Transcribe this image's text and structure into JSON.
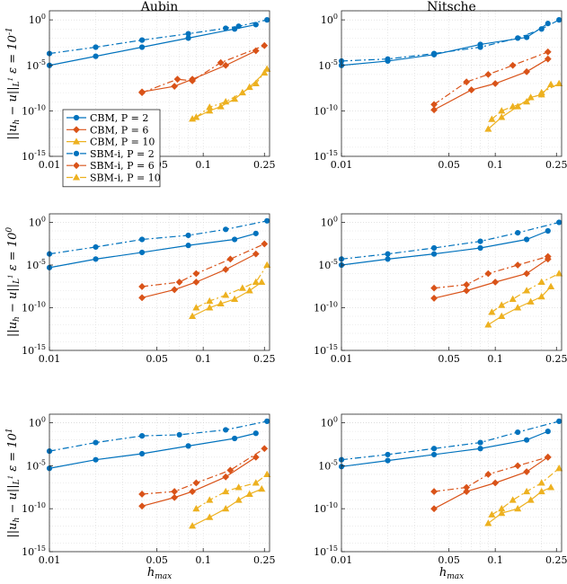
{
  "chart_data": {
    "type": "line",
    "scale": {
      "x": "log",
      "y": "log"
    },
    "xlim": [
      0.01,
      0.27
    ],
    "ylim": [
      1e-15,
      10.0
    ],
    "x_ticks": [
      0.01,
      0.05,
      0.1,
      0.25
    ],
    "x_tick_labels": [
      "0.01",
      "0.05",
      "0.1",
      "0.25"
    ],
    "y_ticks": [
      1e-15,
      1e-10,
      1e-05,
      1
    ],
    "y_tick_labels": [
      "10",
      "10",
      "10",
      "10"
    ],
    "y_tick_exps": [
      "-15",
      "-10",
      "-5",
      "0"
    ],
    "grid": true,
    "column_titles": [
      "Aubin",
      "Nitsche"
    ],
    "xlabel": "h",
    "xlabel_sub": "max",
    "row_labels": [
      {
        "text": "ε = 10",
        "exp": "-1",
        "norm": "||u − u||",
        "norm_sub_h": "h",
        "norm_sub_L": "L",
        "norm_sup": "1"
      },
      {
        "text": "ε = 10",
        "exp": "0",
        "norm": "||u − u||",
        "norm_sub_h": "h",
        "norm_sub_L": "L",
        "norm_sup": "1"
      },
      {
        "text": "ε = 10",
        "exp": "1",
        "norm": "||u − u||",
        "norm_sub_h": "h",
        "norm_sub_L": "L",
        "norm_sup": "1"
      }
    ],
    "legend": {
      "placement": "bottom-left of top-left panel",
      "entries": [
        {
          "label": "CBM, P = 2",
          "color": "#0072BD",
          "dash": "solid",
          "marker": "circle"
        },
        {
          "label": "CBM, P = 6",
          "color": "#D95319",
          "dash": "solid",
          "marker": "diamond"
        },
        {
          "label": "CBM, P = 10",
          "color": "#EDB120",
          "dash": "solid",
          "marker": "triangle"
        },
        {
          "label": "SBM-i, P = 2",
          "color": "#0072BD",
          "dash": "dashdot",
          "marker": "circle"
        },
        {
          "label": "SBM-i, P = 6",
          "color": "#D95319",
          "dash": "dashdot",
          "marker": "diamond"
        },
        {
          "label": "SBM-i, P = 10",
          "color": "#EDB120",
          "dash": "dashdot",
          "marker": "triangle"
        }
      ]
    },
    "panels": [
      {
        "row": 0,
        "col": 0,
        "series": [
          {
            "name": "CBM, P = 2",
            "x": [
              0.01,
              0.02,
              0.04,
              0.08,
              0.16,
              0.22
            ],
            "y": [
              1e-05,
              0.0001,
              0.001,
              0.01,
              0.1,
              0.3
            ]
          },
          {
            "name": "SBM-i, P = 2",
            "x": [
              0.01,
              0.02,
              0.04,
              0.08,
              0.14,
              0.17,
              0.26
            ],
            "y": [
              0.0002,
              0.001,
              0.006,
              0.03,
              0.12,
              0.2,
              1
            ]
          },
          {
            "name": "CBM, P = 6",
            "x": [
              0.04,
              0.065,
              0.085,
              0.14,
              0.22
            ],
            "y": [
              1.2e-08,
              5e-08,
              3e-07,
              1e-05,
              0.0004
            ]
          },
          {
            "name": "SBM-i, P = 6",
            "x": [
              0.04,
              0.068,
              0.085,
              0.13,
              0.25
            ],
            "y": [
              1e-08,
              3e-07,
              2e-07,
              2e-05,
              0.0015
            ]
          },
          {
            "name": "CBM, P = 10",
            "x": [
              0.085,
              0.11,
              0.13,
              0.16,
              0.2,
              0.25
            ],
            "y": [
              1.3e-11,
              1e-10,
              3e-10,
              2e-09,
              4e-08,
              1.5e-06
            ]
          },
          {
            "name": "SBM-i, P = 10",
            "x": [
              0.09,
              0.11,
              0.14,
              0.18,
              0.22,
              0.26
            ],
            "y": [
              2e-11,
              2.5e-10,
              1e-09,
              1e-08,
              1e-07,
              4e-06
            ]
          }
        ]
      },
      {
        "row": 0,
        "col": 1,
        "series": [
          {
            "name": "CBM, P = 2",
            "x": [
              0.01,
              0.02,
              0.04,
              0.08,
              0.16,
              0.22
            ],
            "y": [
              1e-05,
              3e-05,
              0.00015,
              0.002,
              0.012,
              0.4
            ]
          },
          {
            "name": "SBM-i, P = 2",
            "x": [
              0.01,
              0.02,
              0.04,
              0.08,
              0.14,
              0.2,
              0.26
            ],
            "y": [
              3e-05,
              5e-05,
              0.0002,
              0.001,
              0.01,
              0.1,
              1
            ]
          },
          {
            "name": "CBM, P = 6",
            "x": [
              0.04,
              0.07,
              0.1,
              0.16,
              0.22
            ],
            "y": [
              1.3e-10,
              2e-08,
              1e-07,
              2e-06,
              5e-05
            ]
          },
          {
            "name": "SBM-i, P = 6",
            "x": [
              0.04,
              0.065,
              0.09,
              0.13,
              0.22
            ],
            "y": [
              5e-10,
              1.5e-07,
              1e-06,
              1e-05,
              0.0003
            ]
          },
          {
            "name": "CBM, P = 10",
            "x": [
              0.09,
              0.11,
              0.14,
              0.17,
              0.2,
              0.23
            ],
            "y": [
              1e-12,
              2e-11,
              3e-10,
              3e-09,
              6e-09,
              8e-08
            ]
          },
          {
            "name": "SBM-i, P = 10",
            "x": [
              0.095,
              0.11,
              0.13,
              0.16,
              0.2,
              0.26
            ],
            "y": [
              1.2e-11,
              1e-10,
              3e-10,
              1e-09,
              1e-08,
              1e-07
            ]
          }
        ]
      },
      {
        "row": 1,
        "col": 0,
        "series": [
          {
            "name": "CBM, P = 2",
            "x": [
              0.01,
              0.02,
              0.04,
              0.08,
              0.16,
              0.22
            ],
            "y": [
              5e-06,
              5e-05,
              0.0003,
              0.002,
              0.01,
              0.05
            ]
          },
          {
            "name": "SBM-i, P = 2",
            "x": [
              0.01,
              0.02,
              0.04,
              0.08,
              0.14,
              0.26
            ],
            "y": [
              0.0002,
              0.0013,
              0.01,
              0.03,
              0.15,
              1.5
            ]
          },
          {
            "name": "CBM, P = 6",
            "x": [
              0.04,
              0.065,
              0.09,
              0.14,
              0.22
            ],
            "y": [
              1.5e-09,
              1.3e-08,
              1e-07,
              3e-06,
              0.0002
            ]
          },
          {
            "name": "SBM-i, P = 6",
            "x": [
              0.04,
              0.07,
              0.09,
              0.15,
              0.25
            ],
            "y": [
              3e-08,
              1e-07,
              1e-06,
              5e-05,
              0.003
            ]
          },
          {
            "name": "CBM, P = 10",
            "x": [
              0.085,
              0.11,
              0.13,
              0.16,
              0.2,
              0.24
            ],
            "y": [
              1e-11,
              1e-10,
              3e-10,
              1e-09,
              1e-08,
              1e-07
            ]
          },
          {
            "name": "SBM-i, P = 10",
            "x": [
              0.09,
              0.11,
              0.14,
              0.18,
              0.22,
              0.26
            ],
            "y": [
              1e-10,
              6e-10,
              3e-09,
              2e-08,
              1e-07,
              1e-05
            ]
          }
        ]
      },
      {
        "row": 1,
        "col": 1,
        "series": [
          {
            "name": "CBM, P = 2",
            "x": [
              0.01,
              0.02,
              0.04,
              0.08,
              0.16,
              0.22
            ],
            "y": [
              1e-05,
              5e-05,
              0.0002,
              0.001,
              0.01,
              0.1
            ]
          },
          {
            "name": "SBM-i, P = 2",
            "x": [
              0.01,
              0.02,
              0.04,
              0.08,
              0.14,
              0.26
            ],
            "y": [
              5e-05,
              0.0002,
              0.001,
              0.006,
              0.06,
              1
            ]
          },
          {
            "name": "CBM, P = 6",
            "x": [
              0.04,
              0.065,
              0.1,
              0.16,
              0.22
            ],
            "y": [
              1.3e-09,
              1e-08,
              1e-07,
              1e-06,
              5e-05
            ]
          },
          {
            "name": "SBM-i, P = 6",
            "x": [
              0.04,
              0.065,
              0.09,
              0.14,
              0.22
            ],
            "y": [
              2e-08,
              5e-08,
              1e-06,
              1e-05,
              0.0001
            ]
          },
          {
            "name": "CBM, P = 10",
            "x": [
              0.09,
              0.11,
              0.14,
              0.17,
              0.2,
              0.23
            ],
            "y": [
              1e-12,
              1e-11,
              1e-10,
              5e-10,
              2e-09,
              3e-08
            ]
          },
          {
            "name": "SBM-i, P = 10",
            "x": [
              0.095,
              0.11,
              0.13,
              0.16,
              0.2,
              0.26
            ],
            "y": [
              3e-11,
              2e-10,
              1e-09,
              1e-08,
              1e-07,
              1e-06
            ]
          }
        ]
      },
      {
        "row": 2,
        "col": 0,
        "series": [
          {
            "name": "CBM, P = 2",
            "x": [
              0.01,
              0.02,
              0.04,
              0.08,
              0.16,
              0.22
            ],
            "y": [
              5e-06,
              5e-05,
              0.00025,
              0.002,
              0.015,
              0.06
            ]
          },
          {
            "name": "SBM-i, P = 2",
            "x": [
              0.01,
              0.02,
              0.04,
              0.07,
              0.14,
              0.26
            ],
            "y": [
              0.0005,
              0.005,
              0.03,
              0.04,
              0.15,
              1.5
            ]
          },
          {
            "name": "CBM, P = 6",
            "x": [
              0.04,
              0.065,
              0.085,
              0.14,
              0.22
            ],
            "y": [
              2e-10,
              2e-09,
              1e-08,
              5e-07,
              0.0001
            ]
          },
          {
            "name": "SBM-i, P = 6",
            "x": [
              0.04,
              0.065,
              0.09,
              0.15,
              0.25
            ],
            "y": [
              5e-09,
              1e-08,
              1e-07,
              3e-06,
              0.001
            ]
          },
          {
            "name": "CBM, P = 10",
            "x": [
              0.085,
              0.11,
              0.14,
              0.17,
              0.2,
              0.24
            ],
            "y": [
              1e-12,
              1e-11,
              1e-10,
              1e-09,
              5e-09,
              2e-08
            ]
          },
          {
            "name": "SBM-i, P = 10",
            "x": [
              0.09,
              0.11,
              0.14,
              0.17,
              0.22,
              0.26
            ],
            "y": [
              1e-10,
              1e-09,
              1e-08,
              3e-08,
              1e-07,
              1e-06
            ]
          }
        ]
      },
      {
        "row": 2,
        "col": 1,
        "series": [
          {
            "name": "CBM, P = 2",
            "x": [
              0.01,
              0.02,
              0.04,
              0.08,
              0.16,
              0.22
            ],
            "y": [
              8e-06,
              4e-05,
              0.0002,
              0.001,
              0.01,
              0.1
            ]
          },
          {
            "name": "SBM-i, P = 2",
            "x": [
              0.01,
              0.02,
              0.04,
              0.08,
              0.14,
              0.26
            ],
            "y": [
              5e-05,
              0.0002,
              0.001,
              0.005,
              0.08,
              1.5
            ]
          },
          {
            "name": "CBM, P = 6",
            "x": [
              0.04,
              0.065,
              0.1,
              0.16,
              0.22
            ],
            "y": [
              1e-10,
              1e-08,
              1e-07,
              2e-06,
              0.0001
            ]
          },
          {
            "name": "SBM-i, P = 6",
            "x": [
              0.04,
              0.065,
              0.09,
              0.14,
              0.22
            ],
            "y": [
              1e-08,
              3e-08,
              1e-06,
              1e-05,
              0.0001
            ]
          },
          {
            "name": "CBM, P = 10",
            "x": [
              0.09,
              0.11,
              0.14,
              0.17,
              0.2,
              0.23
            ],
            "y": [
              2e-12,
              3e-11,
              1e-10,
              1e-09,
              1e-08,
              3e-08
            ]
          },
          {
            "name": "SBM-i, P = 10",
            "x": [
              0.095,
              0.11,
              0.13,
              0.16,
              0.2,
              0.26
            ],
            "y": [
              2e-11,
              1e-10,
              1e-09,
              1e-08,
              1e-07,
              5e-06
            ]
          }
        ]
      }
    ]
  }
}
